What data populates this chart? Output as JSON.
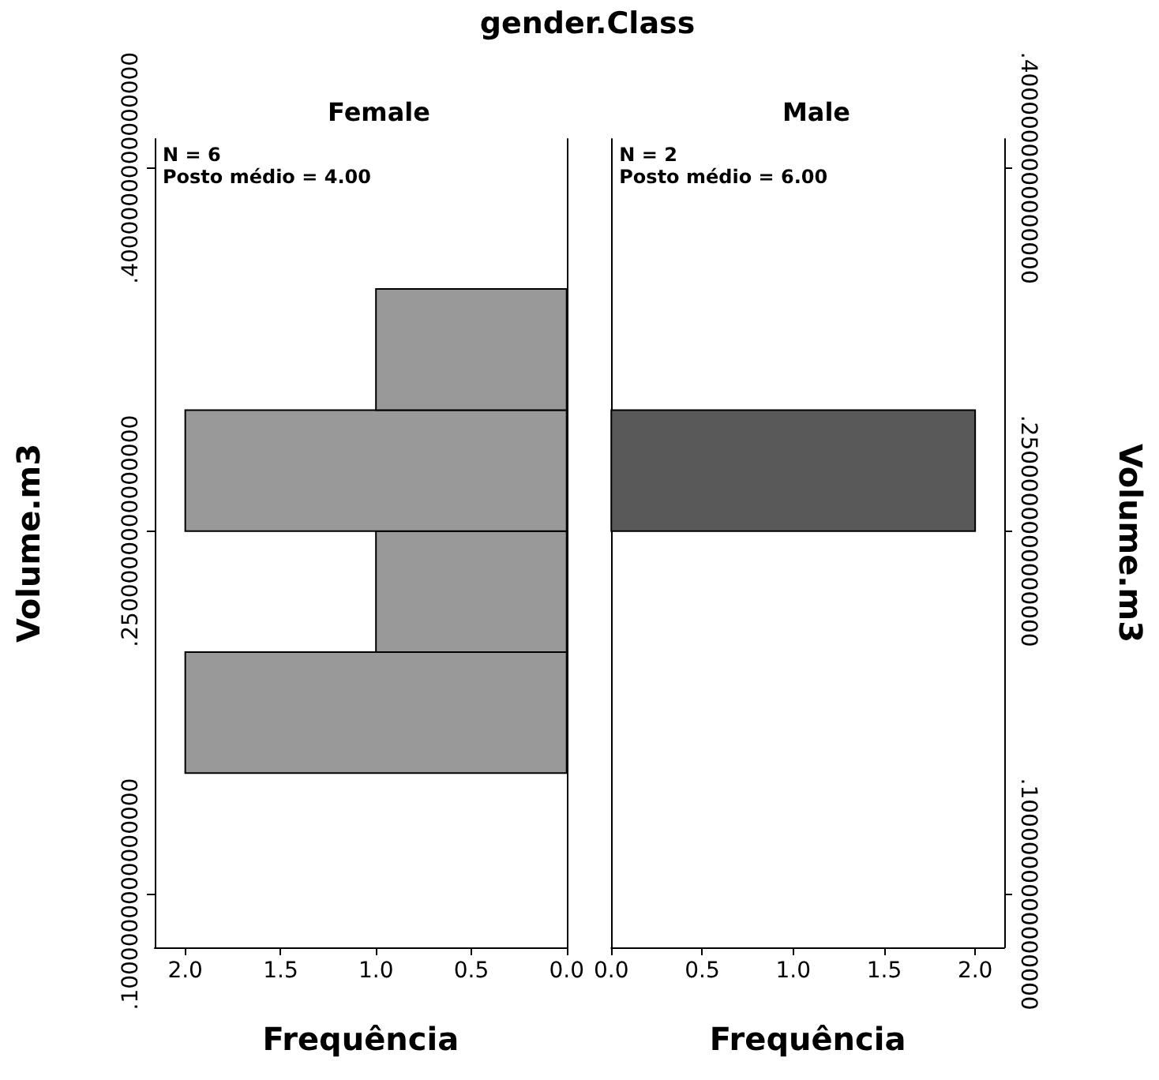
{
  "chart_data": [
    {
      "type": "histogram",
      "orientation": "horizontal",
      "title": "gender.Class",
      "subtitle": "Female",
      "xlabel": "Frequência",
      "ylabel": "Volume.m3",
      "color": "#999999",
      "bins": [
        0.15,
        0.2,
        0.25,
        0.3,
        0.35
      ],
      "values": [
        2,
        1,
        2,
        1
      ],
      "xlim": [
        2.16,
        0
      ],
      "xticks": [
        {
          "value": 2,
          "label": "2.0"
        },
        {
          "value": 1.5,
          "label": "1.5"
        },
        {
          "value": 1,
          "label": "1.0"
        },
        {
          "value": 0.5,
          "label": "0.5"
        },
        {
          "value": 0,
          "label": "0.0"
        }
      ],
      "ylim": [
        0.078,
        0.412
      ],
      "yticks": [
        {
          "value": 0.1,
          "label": ".1000000000000000"
        },
        {
          "value": 0.25,
          "label": ".2500000000000000"
        },
        {
          "value": 0.4,
          "label": ".4000000000000000"
        }
      ],
      "annotations": [
        "N = 6",
        "Posto médio = 4.00"
      ]
    },
    {
      "type": "histogram",
      "orientation": "horizontal",
      "subtitle": "Male",
      "xlabel": "Frequência",
      "ylabel": "Volume.m3",
      "color": "#595959",
      "bins": [
        0.15,
        0.2,
        0.25,
        0.3,
        0.35
      ],
      "values": [
        0,
        0,
        2,
        0
      ],
      "xlim": [
        0,
        2.16
      ],
      "xticks": [
        {
          "value": 0,
          "label": "0.0"
        },
        {
          "value": 0.5,
          "label": "0.5"
        },
        {
          "value": 1,
          "label": "1.0"
        },
        {
          "value": 1.5,
          "label": "1.5"
        },
        {
          "value": 2,
          "label": "2.0"
        }
      ],
      "ylim": [
        0.078,
        0.412
      ],
      "yticks": [
        {
          "value": 0.1,
          "label": ".1000000000000000"
        },
        {
          "value": 0.25,
          "label": ".2500000000000000"
        },
        {
          "value": 0.4,
          "label": ".4000000000000000"
        }
      ],
      "annotations": [
        "N = 2",
        "Posto médio = 6.00"
      ]
    }
  ]
}
